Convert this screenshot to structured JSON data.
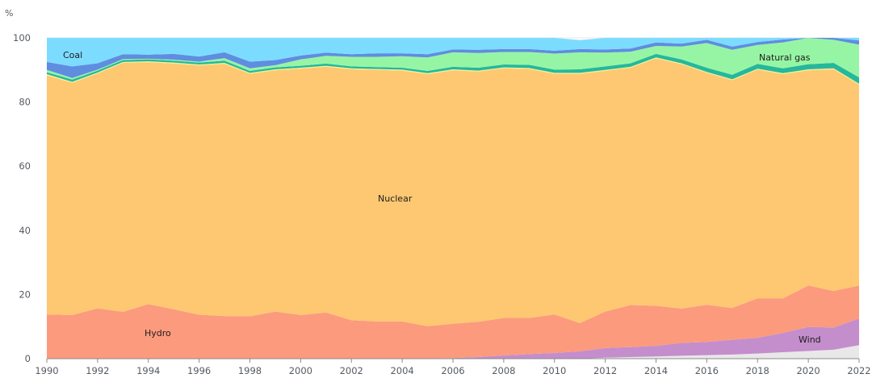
{
  "chart_data": {
    "type": "area",
    "stacked": true,
    "y_unit_label": "%",
    "ylim": [
      0,
      100
    ],
    "yticks": [
      0,
      20,
      40,
      60,
      80,
      100
    ],
    "xlim": [
      1990,
      2022
    ],
    "xticks": [
      1990,
      1992,
      1994,
      1996,
      1998,
      2000,
      2002,
      2004,
      2006,
      2008,
      2010,
      2012,
      2014,
      2016,
      2018,
      2020,
      2022
    ],
    "grid": "horizontal",
    "legend": "none (direct labels on areas)",
    "x": [
      1990,
      1991,
      1992,
      1993,
      1994,
      1995,
      1996,
      1997,
      1998,
      1999,
      2000,
      2001,
      2002,
      2003,
      2004,
      2005,
      2006,
      2007,
      2008,
      2009,
      2010,
      2011,
      2012,
      2013,
      2014,
      2015,
      2016,
      2017,
      2018,
      2019,
      2020,
      2021,
      2022
    ],
    "series": [
      {
        "key": "solar",
        "color": "#e8e8e8",
        "values": [
          0,
          0,
          0,
          0,
          0,
          0,
          0,
          0,
          0,
          0,
          0,
          0,
          0,
          0,
          0,
          0,
          0,
          0,
          0,
          0,
          0,
          0,
          0.3,
          0.5,
          0.7,
          0.9,
          1.1,
          1.3,
          1.6,
          2.0,
          2.4,
          2.8,
          4.2
        ]
      },
      {
        "key": "wind",
        "name": "Wind",
        "color": "#c48dcc",
        "values": [
          0,
          0,
          0,
          0,
          0,
          0,
          0,
          0,
          0,
          0,
          0,
          0,
          0,
          0,
          0,
          0.1,
          0.2,
          0.5,
          1.0,
          1.4,
          1.8,
          2.3,
          3.0,
          3.1,
          3.3,
          4.0,
          4.1,
          4.6,
          4.9,
          6.0,
          7.5,
          6.9,
          8.3
        ]
      },
      {
        "key": "hydro",
        "name": "Hydro",
        "color": "#fc9a7e",
        "values": [
          13.8,
          13.6,
          15.7,
          14.6,
          17.0,
          15.4,
          13.7,
          13.3,
          13.2,
          14.7,
          13.6,
          14.4,
          12.0,
          11.6,
          11.6,
          10.0,
          10.7,
          11.0,
          11.7,
          11.3,
          12.0,
          8.8,
          11.4,
          13.1,
          12.5,
          10.7,
          11.6,
          9.9,
          12.3,
          10.8,
          12.9,
          11.4,
          10.3
        ]
      },
      {
        "key": "nuclear",
        "name": "Nuclear",
        "color": "#fdc871",
        "values": [
          74.5,
          72.4,
          73.2,
          77.6,
          75.4,
          76.6,
          77.7,
          78.6,
          75.6,
          75.2,
          76.8,
          76.6,
          78.2,
          78.4,
          78.2,
          78.6,
          79.0,
          78.0,
          77.8,
          77.6,
          75.0,
          77.7,
          75.0,
          74.0,
          77.1,
          76.2,
          72.3,
          71.0,
          71.3,
          69.9,
          67.1,
          69.1,
          62.6
        ]
      },
      {
        "key": "oil",
        "color": "#f7ef8e",
        "values": [
          0.4,
          0.3,
          0.3,
          0.3,
          0.3,
          0.3,
          0.3,
          0.3,
          0.3,
          0.3,
          0.3,
          0.3,
          0.3,
          0.3,
          0.3,
          0.3,
          0.3,
          0.3,
          0.3,
          0.3,
          0.3,
          0.3,
          0.3,
          0.3,
          0.3,
          0.3,
          0.3,
          0.3,
          0.3,
          0.3,
          0.3,
          0.3,
          0.3
        ]
      },
      {
        "key": "bio",
        "color": "#25b89b",
        "values": [
          0.6,
          0.7,
          0.6,
          0.6,
          0.6,
          0.6,
          0.6,
          0.7,
          0.6,
          0.6,
          0.6,
          0.7,
          0.6,
          0.6,
          0.6,
          0.7,
          0.8,
          0.9,
          0.9,
          1.0,
          1.0,
          1.1,
          1.1,
          1.1,
          1.1,
          1.2,
          1.3,
          1.4,
          1.5,
          1.5,
          1.6,
          1.7,
          2.0
        ]
      },
      {
        "key": "gas",
        "name": "Natural gas",
        "color": "#96f5a4",
        "values": [
          0.7,
          0.5,
          0.3,
          0.3,
          0.2,
          0.3,
          0.3,
          0.8,
          0.8,
          0.7,
          2.0,
          2.4,
          3.0,
          3.2,
          3.6,
          4.2,
          4.5,
          4.6,
          3.9,
          4.0,
          5.0,
          5.3,
          4.3,
          3.6,
          2.5,
          4.0,
          7.7,
          7.8,
          5.9,
          8.1,
          8.8,
          7.2,
          10.2
        ]
      },
      {
        "key": "other",
        "color": "#5f8de0",
        "values": [
          2.5,
          3.6,
          2.0,
          1.5,
          1.3,
          1.8,
          1.6,
          1.8,
          2.1,
          1.6,
          1.2,
          1.0,
          0.8,
          1.1,
          0.9,
          1.0,
          0.9,
          1.0,
          0.9,
          0.9,
          0.9,
          1.0,
          1.0,
          1.0,
          1.1,
          0.9,
          1.0,
          1.0,
          0.9,
          0.9,
          0.9,
          0.9,
          1.3
        ]
      },
      {
        "key": "coal",
        "name": "Coal",
        "color": "#7cdcff",
        "values": [
          7.5,
          8.9,
          7.9,
          5.1,
          5.2,
          5.0,
          5.8,
          4.5,
          7.4,
          6.9,
          5.5,
          4.6,
          5.1,
          5.2,
          4.8,
          5.1,
          3.6,
          4.0,
          3.5,
          3.5,
          4.0,
          2.8,
          3.6,
          3.3,
          1.4,
          1.8,
          0.6,
          3.0,
          1.3,
          0.5,
          0.0,
          0.0,
          0.8
        ]
      }
    ],
    "labels": {
      "coal": "Coal",
      "natural_gas": "Natural gas",
      "nuclear": "Nuclear",
      "hydro": "Hydro",
      "wind": "Wind"
    }
  }
}
